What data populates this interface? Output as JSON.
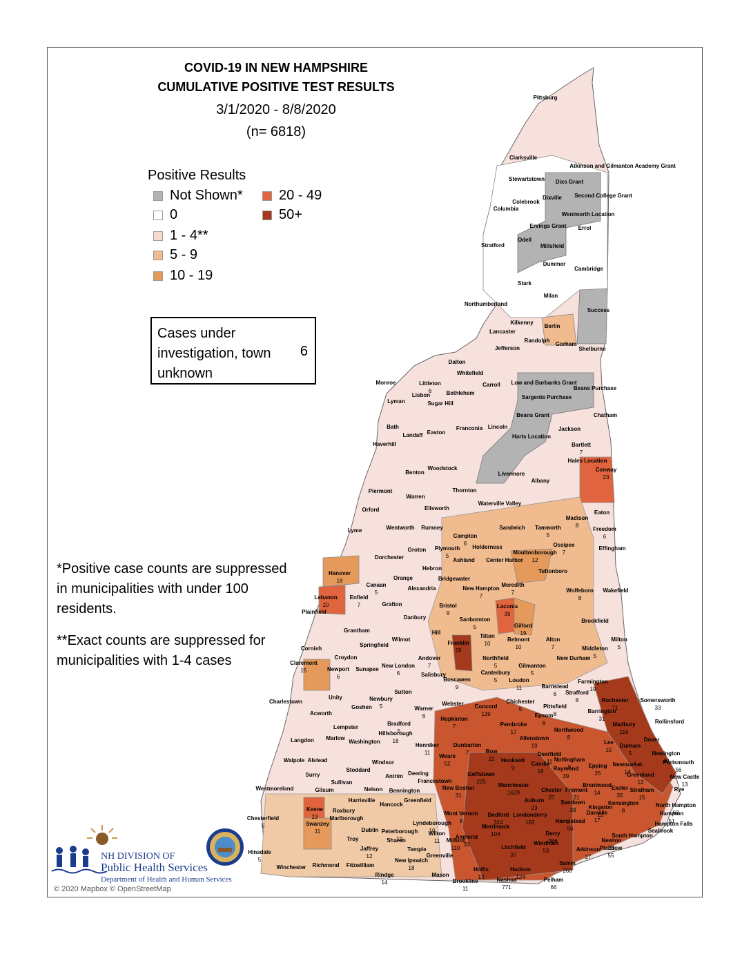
{
  "title": {
    "line1": "COVID-19 IN NEW HAMPSHIRE",
    "line2": "CUMULATIVE POSITIVE TEST RESULTS",
    "date_range": "3/1/2020 - 8/8/2020",
    "n": "(n= 6818)"
  },
  "legend": {
    "title": "Positive Results",
    "items": [
      {
        "label": "Not Shown*",
        "color": "#b3b3b3"
      },
      {
        "label": "0",
        "color": "#ffffff"
      },
      {
        "label": "1 - 4**",
        "color": "#f7d9d2"
      },
      {
        "label": "5 - 9",
        "color": "#f0bb8f"
      },
      {
        "label": "10 - 19",
        "color": "#e59a5c"
      },
      {
        "label": "20 - 49",
        "color": "#e0643d"
      },
      {
        "label": "50+",
        "color": "#a5391c"
      }
    ]
  },
  "unknown_box": {
    "label": "Cases under investigation, town unknown",
    "value": "6"
  },
  "notes": {
    "note1": "*Positive case counts are suppressed in municipalities with under 100 residents.",
    "note2": "**Exact counts are suppressed for municipalities with 1-4 cases"
  },
  "attribution": "© 2020 Mapbox © OpenStreetMap",
  "logo": {
    "line1": "NH DIVISION OF",
    "line2": "Public Health Services",
    "line3": "Department of Health and Human Services"
  },
  "towns": [
    {
      "name": "Pittsburg",
      "count": ""
    },
    {
      "name": "Clarksville",
      "count": ""
    },
    {
      "name": "Atkinson and Gilmanton Academy Grant",
      "count": ""
    },
    {
      "name": "Stewartstown",
      "count": ""
    },
    {
      "name": "Dixs Grant",
      "count": ""
    },
    {
      "name": "Colebrook",
      "count": ""
    },
    {
      "name": "Dixville",
      "count": ""
    },
    {
      "name": "Second College Grant",
      "count": ""
    },
    {
      "name": "Columbia",
      "count": ""
    },
    {
      "name": "Wentworth Location",
      "count": ""
    },
    {
      "name": "Ervings Grant",
      "count": ""
    },
    {
      "name": "Errol",
      "count": ""
    },
    {
      "name": "Odell",
      "count": ""
    },
    {
      "name": "Stratford",
      "count": ""
    },
    {
      "name": "Millsfield",
      "count": ""
    },
    {
      "name": "Dummer",
      "count": ""
    },
    {
      "name": "Cambridge",
      "count": ""
    },
    {
      "name": "Stark",
      "count": ""
    },
    {
      "name": "Milan",
      "count": ""
    },
    {
      "name": "Northumberland",
      "count": ""
    },
    {
      "name": "Success",
      "count": ""
    },
    {
      "name": "Kilkenny",
      "count": ""
    },
    {
      "name": "Berlin",
      "count": ""
    },
    {
      "name": "Lancaster",
      "count": ""
    },
    {
      "name": "Randolph",
      "count": ""
    },
    {
      "name": "Gorham",
      "count": ""
    },
    {
      "name": "Jefferson",
      "count": ""
    },
    {
      "name": "Shelburne",
      "count": ""
    },
    {
      "name": "Dalton",
      "count": ""
    },
    {
      "name": "Whitefield",
      "count": ""
    },
    {
      "name": "Littleton",
      "count": "6"
    },
    {
      "name": "Monroe",
      "count": ""
    },
    {
      "name": "Carroll",
      "count": ""
    },
    {
      "name": "Low and Burbanks Grant",
      "count": ""
    },
    {
      "name": "Bethlehem",
      "count": ""
    },
    {
      "name": "Beans Purchase",
      "count": ""
    },
    {
      "name": "Lisbon",
      "count": ""
    },
    {
      "name": "Lyman",
      "count": ""
    },
    {
      "name": "Sargents Purchase",
      "count": ""
    },
    {
      "name": "Sugar Hill",
      "count": ""
    },
    {
      "name": "Bath",
      "count": ""
    },
    {
      "name": "Beans Grant",
      "count": ""
    },
    {
      "name": "Chatham",
      "count": ""
    },
    {
      "name": "Franconia",
      "count": ""
    },
    {
      "name": "Lincoln",
      "count": ""
    },
    {
      "name": "Jackson",
      "count": ""
    },
    {
      "name": "Easton",
      "count": ""
    },
    {
      "name": "Landaff",
      "count": ""
    },
    {
      "name": "Harts Location",
      "count": ""
    },
    {
      "name": "Haverhill",
      "count": ""
    },
    {
      "name": "Bartlett",
      "count": "7"
    },
    {
      "name": "Hales Location",
      "count": ""
    },
    {
      "name": "Woodstock",
      "count": ""
    },
    {
      "name": "Conway",
      "count": "23"
    },
    {
      "name": "Benton",
      "count": ""
    },
    {
      "name": "Livermore",
      "count": ""
    },
    {
      "name": "Albany",
      "count": ""
    },
    {
      "name": "Piermont",
      "count": ""
    },
    {
      "name": "Thornton",
      "count": ""
    },
    {
      "name": "Warren",
      "count": ""
    },
    {
      "name": "Waterville Valley",
      "count": ""
    },
    {
      "name": "Orford",
      "count": ""
    },
    {
      "name": "Ellsworth",
      "count": ""
    },
    {
      "name": "Madison",
      "count": "8"
    },
    {
      "name": "Eaton",
      "count": ""
    },
    {
      "name": "Lyme",
      "count": ""
    },
    {
      "name": "Wentworth",
      "count": ""
    },
    {
      "name": "Rumney",
      "count": ""
    },
    {
      "name": "Campton",
      "count": "6"
    },
    {
      "name": "Sandwich",
      "count": ""
    },
    {
      "name": "Tamworth",
      "count": "5"
    },
    {
      "name": "Freedom",
      "count": "6"
    },
    {
      "name": "Ossipee",
      "count": "7"
    },
    {
      "name": "Effingham",
      "count": ""
    },
    {
      "name": "Groton",
      "count": ""
    },
    {
      "name": "Plymouth",
      "count": "5"
    },
    {
      "name": "Holderness",
      "count": ""
    },
    {
      "name": "Dorchester",
      "count": ""
    },
    {
      "name": "Moultonborough",
      "count": "12"
    },
    {
      "name": "Ashland",
      "count": ""
    },
    {
      "name": "Hanover",
      "count": "18"
    },
    {
      "name": "Hebron",
      "count": ""
    },
    {
      "name": "Center Harbor",
      "count": ""
    },
    {
      "name": "Tuftonboro",
      "count": ""
    },
    {
      "name": "Canaan",
      "count": "5"
    },
    {
      "name": "Orange",
      "count": ""
    },
    {
      "name": "Bridgewater",
      "count": ""
    },
    {
      "name": "Alexandria",
      "count": ""
    },
    {
      "name": "New Hampton",
      "count": "7"
    },
    {
      "name": "Meredith",
      "count": "7"
    },
    {
      "name": "Wolfeboro",
      "count": "8"
    },
    {
      "name": "Wakefield",
      "count": ""
    },
    {
      "name": "Lebanon",
      "count": "20"
    },
    {
      "name": "Enfield",
      "count": "7"
    },
    {
      "name": "Grafton",
      "count": ""
    },
    {
      "name": "Bristol",
      "count": "9"
    },
    {
      "name": "Laconia",
      "count": "39"
    },
    {
      "name": "Gilford",
      "count": "19"
    },
    {
      "name": "Plainfield",
      "count": ""
    },
    {
      "name": "Danbury",
      "count": ""
    },
    {
      "name": "Sanbornton",
      "count": "5"
    },
    {
      "name": "Brookfield",
      "count": ""
    },
    {
      "name": "Grantham",
      "count": ""
    },
    {
      "name": "Hill",
      "count": ""
    },
    {
      "name": "Tilton",
      "count": "10"
    },
    {
      "name": "Belmont",
      "count": "10"
    },
    {
      "name": "Alton",
      "count": "7"
    },
    {
      "name": "Milton",
      "count": "5"
    },
    {
      "name": "Wilmot",
      "count": ""
    },
    {
      "name": "Springfield",
      "count": ""
    },
    {
      "name": "Franklin",
      "count": "78"
    },
    {
      "name": "Middleton",
      "count": "5"
    },
    {
      "name": "Cornish",
      "count": ""
    },
    {
      "name": "Croydon",
      "count": ""
    },
    {
      "name": "Andover",
      "count": "7"
    },
    {
      "name": "Northfield",
      "count": "5"
    },
    {
      "name": "New Durham",
      "count": ""
    },
    {
      "name": "Gilmanton",
      "count": "5"
    },
    {
      "name": "Claremont",
      "count": "15"
    },
    {
      "name": "Newport",
      "count": "6"
    },
    {
      "name": "Sunapee",
      "count": ""
    },
    {
      "name": "New London",
      "count": "6"
    },
    {
      "name": "Salisbury",
      "count": ""
    },
    {
      "name": "Canterbury",
      "count": "5"
    },
    {
      "name": "Farmington",
      "count": "19"
    },
    {
      "name": "Boscawen",
      "count": "9"
    },
    {
      "name": "Loudon",
      "count": "11"
    },
    {
      "name": "Barnstead",
      "count": "6"
    },
    {
      "name": "Sutton",
      "count": ""
    },
    {
      "name": "Strafford",
      "count": "8"
    },
    {
      "name": "Charlestown",
      "count": ""
    },
    {
      "name": "Unity",
      "count": ""
    },
    {
      "name": "Newbury",
      "count": "5"
    },
    {
      "name": "Goshen",
      "count": ""
    },
    {
      "name": "Warner",
      "count": "6"
    },
    {
      "name": "Webster",
      "count": ""
    },
    {
      "name": "Rochester",
      "count": "71"
    },
    {
      "name": "Somersworth",
      "count": "33"
    },
    {
      "name": "Chichester",
      "count": "5"
    },
    {
      "name": "Pittsfield",
      "count": "8"
    },
    {
      "name": "Concord",
      "count": "139"
    },
    {
      "name": "Barrington",
      "count": "31"
    },
    {
      "name": "Acworth",
      "count": ""
    },
    {
      "name": "Hopkinton",
      "count": "7"
    },
    {
      "name": "Epsom",
      "count": "6"
    },
    {
      "name": "Rollinsford",
      "count": ""
    },
    {
      "name": "Bradford",
      "count": "5"
    },
    {
      "name": "Pembroke",
      "count": "17"
    },
    {
      "name": "Northwood",
      "count": "8"
    },
    {
      "name": "Madbury",
      "count": "116"
    },
    {
      "name": "Lempster",
      "count": ""
    },
    {
      "name": "Hillsborough",
      "count": "18"
    },
    {
      "name": "Henniker",
      "count": "11"
    },
    {
      "name": "Allenstown",
      "count": "19"
    },
    {
      "name": "Langdon",
      "count": ""
    },
    {
      "name": "Marlow",
      "count": ""
    },
    {
      "name": "Washington",
      "count": ""
    },
    {
      "name": "Dunbarton",
      "count": "7"
    },
    {
      "name": "Bow",
      "count": "22"
    },
    {
      "name": "Deerfield",
      "count": "11"
    },
    {
      "name": "Lee",
      "count": "15"
    },
    {
      "name": "Durham",
      "count": "5"
    },
    {
      "name": "Dover",
      "count": ""
    },
    {
      "name": "Newington",
      "count": "40"
    },
    {
      "name": "Walpole",
      "count": ""
    },
    {
      "name": "Alstead",
      "count": ""
    },
    {
      "name": "Windsor",
      "count": ""
    },
    {
      "name": "Weare",
      "count": "52"
    },
    {
      "name": "Hooksett",
      "count": "9"
    },
    {
      "name": "Nottingham",
      "count": "8"
    },
    {
      "name": "Portsmouth",
      "count": "56"
    },
    {
      "name": "Stoddard",
      "count": ""
    },
    {
      "name": "Deering",
      "count": ""
    },
    {
      "name": "Candia",
      "count": "18"
    },
    {
      "name": "Raymond",
      "count": "39"
    },
    {
      "name": "Epping",
      "count": "25"
    },
    {
      "name": "Newmarket",
      "count": "14"
    },
    {
      "name": "Surry",
      "count": ""
    },
    {
      "name": "Antrim",
      "count": ""
    },
    {
      "name": "Francestown",
      "count": ""
    },
    {
      "name": "Goffstown",
      "count": "225"
    },
    {
      "name": "Manchester",
      "count": "1629"
    },
    {
      "name": "Greenland",
      "count": "12"
    },
    {
      "name": "New Castle",
      "count": "13"
    },
    {
      "name": "Gilsum",
      "count": ""
    },
    {
      "name": "Sullivan",
      "count": ""
    },
    {
      "name": "New Boston",
      "count": "31"
    },
    {
      "name": "Chester",
      "count": "37"
    },
    {
      "name": "Fremont",
      "count": "21"
    },
    {
      "name": "Brentwood",
      "count": "14"
    },
    {
      "name": "Exeter",
      "count": "35"
    },
    {
      "name": "Stratham",
      "count": "15"
    },
    {
      "name": "Rye",
      "count": ""
    },
    {
      "name": "Westmoreland",
      "count": ""
    },
    {
      "name": "Nelson",
      "count": ""
    },
    {
      "name": "Bennington",
      "count": ""
    },
    {
      "name": "Harrisville",
      "count": ""
    },
    {
      "name": "Greenfield",
      "count": ""
    },
    {
      "name": "Auburn",
      "count": "23"
    },
    {
      "name": "Sandown",
      "count": "39"
    },
    {
      "name": "Kingston",
      "count": "22"
    },
    {
      "name": "Kensington",
      "count": "8"
    },
    {
      "name": "North Hampton",
      "count": "63"
    },
    {
      "name": "Keene",
      "count": "23"
    },
    {
      "name": "Hancock",
      "count": ""
    },
    {
      "name": "Roxbury",
      "count": ""
    },
    {
      "name": "Mont Vernon",
      "count": "8"
    },
    {
      "name": "Bedford",
      "count": "314"
    },
    {
      "name": "Londonderry",
      "count": "182"
    },
    {
      "name": "Hampstead",
      "count": "56"
    },
    {
      "name": "Hampton",
      "count": "51"
    },
    {
      "name": "Chesterfield",
      "count": "5"
    },
    {
      "name": "Marlborough",
      "count": ""
    },
    {
      "name": "Lyndeborough",
      "count": "10"
    },
    {
      "name": "Merrimack",
      "count": "104"
    },
    {
      "name": "Derry",
      "count": "366"
    },
    {
      "name": "Danville",
      "count": "17"
    },
    {
      "name": "Hampton Falls",
      "count": ""
    },
    {
      "name": "Swanzey",
      "count": "11"
    },
    {
      "name": "Dublin",
      "count": ""
    },
    {
      "name": "Peterborough",
      "count": "19"
    },
    {
      "name": "Wilton",
      "count": "11"
    },
    {
      "name": "Amherst",
      "count": "33"
    },
    {
      "name": "Newton",
      "count": "28"
    },
    {
      "name": "Seabrook",
      "count": ""
    },
    {
      "name": "South Hampton",
      "count": ""
    },
    {
      "name": "Troy",
      "count": ""
    },
    {
      "name": "Sharon",
      "count": ""
    },
    {
      "name": "Milford",
      "count": "110"
    },
    {
      "name": "Litchfield",
      "count": "37"
    },
    {
      "name": "Windham",
      "count": "53"
    },
    {
      "name": "Atkinson",
      "count": "27"
    },
    {
      "name": "Plaistow",
      "count": "55"
    },
    {
      "name": "Jaffrey",
      "count": "12"
    },
    {
      "name": "Temple",
      "count": ""
    },
    {
      "name": "Greenville",
      "count": ""
    },
    {
      "name": "Hinsdale",
      "count": "5"
    },
    {
      "name": "Winchester",
      "count": ""
    },
    {
      "name": "Richmond",
      "count": ""
    },
    {
      "name": "Fitzwilliam",
      "count": ""
    },
    {
      "name": "Rindge",
      "count": "14"
    },
    {
      "name": "New Ipswich",
      "count": "18"
    },
    {
      "name": "Mason",
      "count": ""
    },
    {
      "name": "Brookline",
      "count": "11"
    },
    {
      "name": "Hollis",
      "count": "13"
    },
    {
      "name": "Nashua",
      "count": "771"
    },
    {
      "name": "Hudson",
      "count": "124"
    },
    {
      "name": "Pelham",
      "count": "66"
    },
    {
      "name": "Salem",
      "count": "268"
    }
  ]
}
